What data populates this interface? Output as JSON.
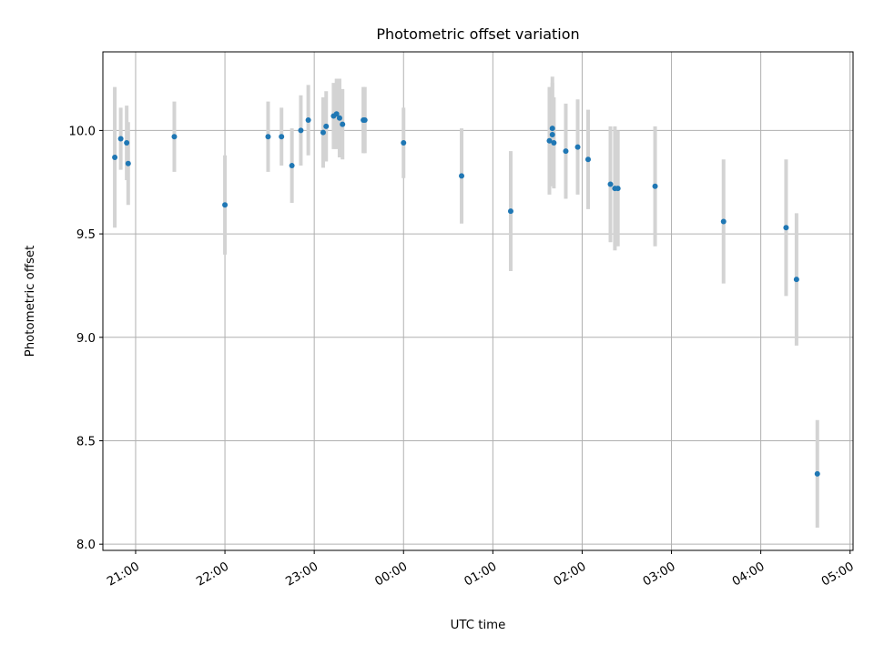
{
  "chart_data": {
    "type": "scatter",
    "title": "Photometric offset variation",
    "xlabel": "UTC time",
    "ylabel": "Photometric offset",
    "x_unit": "UTC time",
    "xlim": [
      "20:38",
      "05:02"
    ],
    "ylim": [
      7.97,
      10.38
    ],
    "x_ticks": [
      "21:00",
      "22:00",
      "23:00",
      "00:00",
      "01:00",
      "02:00",
      "03:00",
      "04:00",
      "05:00"
    ],
    "y_ticks": [
      "8.0",
      "8.5",
      "9.0",
      "9.5",
      "10.0"
    ],
    "grid": true,
    "colors": {
      "point": "#1f77b4",
      "errorbar": "#d3d3d3",
      "grid": "#b0b0b0"
    },
    "points": [
      {
        "time": "20:46",
        "y": 9.87,
        "err": 0.34
      },
      {
        "time": "20:50",
        "y": 9.96,
        "err": 0.15
      },
      {
        "time": "20:54",
        "y": 9.94,
        "err": 0.18
      },
      {
        "time": "20:55",
        "y": 9.84,
        "err": 0.2
      },
      {
        "time": "21:26",
        "y": 9.97,
        "err": 0.17
      },
      {
        "time": "22:00",
        "y": 9.64,
        "err": 0.24
      },
      {
        "time": "22:29",
        "y": 9.97,
        "err": 0.17
      },
      {
        "time": "22:38",
        "y": 9.97,
        "err": 0.14
      },
      {
        "time": "22:45",
        "y": 9.83,
        "err": 0.18
      },
      {
        "time": "22:51",
        "y": 10.0,
        "err": 0.17
      },
      {
        "time": "22:56",
        "y": 10.05,
        "err": 0.17
      },
      {
        "time": "23:06",
        "y": 9.99,
        "err": 0.17
      },
      {
        "time": "23:08",
        "y": 10.02,
        "err": 0.17
      },
      {
        "time": "23:13",
        "y": 10.07,
        "err": 0.16
      },
      {
        "time": "23:15",
        "y": 10.08,
        "err": 0.17
      },
      {
        "time": "23:17",
        "y": 10.06,
        "err": 0.19
      },
      {
        "time": "23:19",
        "y": 10.03,
        "err": 0.17
      },
      {
        "time": "23:33",
        "y": 10.05,
        "err": 0.16
      },
      {
        "time": "23:34",
        "y": 10.05,
        "err": 0.16
      },
      {
        "time": "00:00",
        "y": 9.94,
        "err": 0.17
      },
      {
        "time": "00:39",
        "y": 9.78,
        "err": 0.23
      },
      {
        "time": "01:12",
        "y": 9.61,
        "err": 0.29
      },
      {
        "time": "01:38",
        "y": 9.95,
        "err": 0.26
      },
      {
        "time": "01:40",
        "y": 10.01,
        "err": 0.25
      },
      {
        "time": "01:40",
        "y": 9.98,
        "err": 0.25
      },
      {
        "time": "01:41",
        "y": 9.94,
        "err": 0.22
      },
      {
        "time": "01:49",
        "y": 9.9,
        "err": 0.23
      },
      {
        "time": "01:57",
        "y": 9.92,
        "err": 0.23
      },
      {
        "time": "02:04",
        "y": 9.86,
        "err": 0.24
      },
      {
        "time": "02:19",
        "y": 9.74,
        "err": 0.28
      },
      {
        "time": "02:22",
        "y": 9.72,
        "err": 0.3
      },
      {
        "time": "02:24",
        "y": 9.72,
        "err": 0.28
      },
      {
        "time": "02:49",
        "y": 9.73,
        "err": 0.29
      },
      {
        "time": "03:35",
        "y": 9.56,
        "err": 0.3
      },
      {
        "time": "04:17",
        "y": 9.53,
        "err": 0.33
      },
      {
        "time": "04:24",
        "y": 9.28,
        "err": 0.32
      },
      {
        "time": "04:38",
        "y": 8.34,
        "err": 0.26
      }
    ]
  }
}
